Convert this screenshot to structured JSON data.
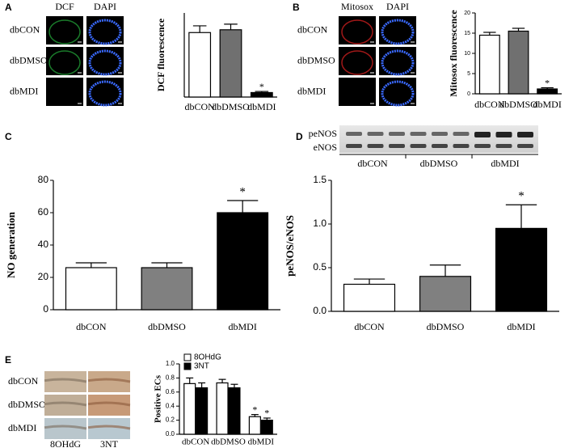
{
  "panel_labels": [
    "A",
    "B",
    "C",
    "D",
    "E"
  ],
  "microscopy": [
    {
      "columns": [
        "DCF",
        "DAPI"
      ],
      "rows": [
        "dbCON",
        "dbDMSO",
        "dbMDI"
      ]
    },
    {
      "columns": [
        "Mitosox",
        "DAPI"
      ],
      "rows": [
        "dbCON",
        "dbDMSO",
        "dbMDI"
      ]
    },
    {
      "columns": [
        "8OHdG",
        "3NT"
      ],
      "rows": [
        "dbCON",
        "dbDMSO",
        "dbMDI"
      ]
    }
  ],
  "blot": {
    "bands": [
      "peNOS",
      "eNOS"
    ],
    "groups": [
      "dbCON",
      "dbDMSO",
      "dbMDI"
    ]
  },
  "chart_data": [
    {
      "type": "bar",
      "ylabel": "DCF fluorescence",
      "categories": [
        "dbCON",
        "dbDMSO",
        "dbMDI"
      ],
      "values": [
        11.5,
        12,
        0.8
      ],
      "errors": [
        1.2,
        1,
        0.2
      ],
      "significance": [
        null,
        null,
        "*"
      ],
      "colors": [
        "#ffffff",
        "#707070",
        "#000000"
      ],
      "ylim": [
        0,
        15
      ]
    },
    {
      "type": "bar",
      "ylabel": "Mitosox fluorescence",
      "categories": [
        "dbCON",
        "dbDMSO",
        "dbMDI"
      ],
      "values": [
        14.5,
        15.5,
        1.2
      ],
      "errors": [
        0.7,
        0.7,
        0.3
      ],
      "significance": [
        null,
        null,
        "*"
      ],
      "colors": [
        "#ffffff",
        "#707070",
        "#000000"
      ],
      "ylim": [
        0,
        20
      ],
      "yticks": [
        0,
        5,
        10,
        15,
        20
      ]
    },
    {
      "type": "bar",
      "ylabel": "NO generation",
      "categories": [
        "dbCON",
        "dbDMSO",
        "dbMDI"
      ],
      "values": [
        26,
        26,
        60
      ],
      "errors": [
        3,
        3,
        7.5
      ],
      "significance": [
        null,
        null,
        "*"
      ],
      "colors": [
        "#ffffff",
        "#808080",
        "#000000"
      ],
      "ylim": [
        0,
        80
      ],
      "yticks": [
        0,
        20,
        40,
        60,
        80
      ]
    },
    {
      "type": "bar",
      "ylabel": "peNOS/eNOS",
      "categories": [
        "dbCON",
        "dbDMSO",
        "dbMDI"
      ],
      "values": [
        0.31,
        0.4,
        0.95
      ],
      "errors": [
        0.06,
        0.13,
        0.27
      ],
      "significance": [
        null,
        null,
        "*"
      ],
      "colors": [
        "#ffffff",
        "#808080",
        "#000000"
      ],
      "ylim": [
        0,
        1.5
      ],
      "yticks": [
        {
          "value": 0,
          "label": "0.0"
        },
        0.5,
        {
          "value": 1,
          "label": "1.0"
        },
        {
          "value": 1.5,
          "label": "1.5"
        }
      ]
    },
    {
      "type": "bar",
      "ylabel": "Positive ECs",
      "categories": [
        "dbCON",
        "dbDMSO",
        "dbMDI"
      ],
      "series": [
        {
          "name": "8OHdG",
          "color": "#ffffff",
          "values": [
            0.72,
            0.73,
            0.25
          ],
          "errors": [
            0.08,
            0.05,
            0.03
          ],
          "significance": [
            null,
            null,
            "*"
          ]
        },
        {
          "name": "3NT",
          "color": "#000000",
          "values": [
            0.66,
            0.66,
            0.2
          ],
          "errors": [
            0.07,
            0.05,
            0.03
          ],
          "significance": [
            null,
            null,
            "*"
          ]
        }
      ],
      "legend": "upper left",
      "ylim": [
        0,
        1
      ],
      "yticks": [
        {
          "value": 0,
          "label": "0.0"
        },
        0.2,
        0.4,
        0.6,
        0.8,
        {
          "value": 1,
          "label": "1.0"
        }
      ]
    }
  ]
}
